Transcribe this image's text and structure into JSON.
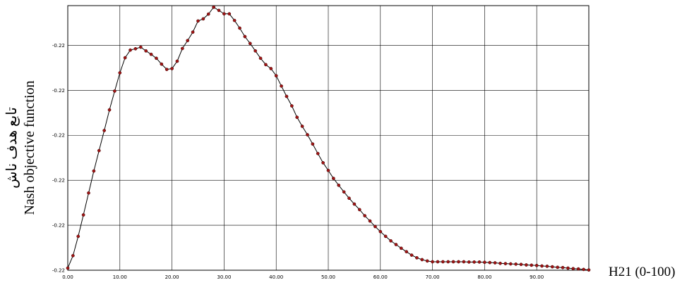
{
  "chart_data": {
    "type": "line",
    "xlabel": "H21 (0-100)",
    "ylabel_lines": [
      "تابع هدف ناش",
      "Nash objective function"
    ],
    "x_ticks": [
      "0.00",
      "10.00",
      "20.00",
      "30.00",
      "40.00",
      "50.00",
      "60.00",
      "70.00",
      "80.00",
      "90.00"
    ],
    "y_ticks": [
      "-0.22",
      "-0.22",
      "-0.22",
      "-0.22",
      "-0.22",
      "-0.22"
    ],
    "xlim": [
      0,
      100
    ],
    "ylim": [
      0.0,
      1.0
    ],
    "grid": true,
    "colors": {
      "line": "#000000",
      "marker": "#a01414",
      "grid": "#000000"
    },
    "series": [
      {
        "marker": "circle",
        "x": [
          0,
          1,
          2,
          3,
          4,
          5,
          6,
          7,
          8,
          9,
          10,
          11,
          12,
          13,
          14,
          15,
          16,
          17,
          18,
          19,
          20,
          21,
          22,
          23,
          24,
          25,
          26,
          27,
          28,
          29,
          30,
          31,
          32,
          33,
          34,
          35,
          36,
          37,
          38,
          39,
          40,
          41,
          42,
          43,
          44,
          45,
          46,
          47,
          48,
          49,
          50,
          51,
          52,
          53,
          54,
          55,
          56,
          57,
          58,
          59,
          60,
          61,
          62,
          63,
          64,
          65,
          66,
          67,
          68,
          69,
          70,
          71,
          72,
          73,
          74,
          75,
          76,
          77,
          78,
          79,
          80,
          81,
          82,
          83,
          84,
          85,
          86,
          87,
          88,
          89,
          90,
          91,
          92,
          93,
          94,
          95,
          96,
          97,
          98,
          99,
          100
        ],
        "y": [
          0.008,
          0.055,
          0.128,
          0.209,
          0.292,
          0.375,
          0.452,
          0.528,
          0.606,
          0.677,
          0.746,
          0.803,
          0.832,
          0.837,
          0.843,
          0.829,
          0.816,
          0.801,
          0.779,
          0.759,
          0.762,
          0.79,
          0.838,
          0.868,
          0.9,
          0.942,
          0.95,
          0.968,
          0.994,
          0.982,
          0.969,
          0.969,
          0.944,
          0.915,
          0.883,
          0.857,
          0.829,
          0.801,
          0.777,
          0.762,
          0.735,
          0.696,
          0.657,
          0.621,
          0.578,
          0.544,
          0.512,
          0.477,
          0.441,
          0.406,
          0.377,
          0.347,
          0.321,
          0.296,
          0.272,
          0.25,
          0.229,
          0.206,
          0.186,
          0.165,
          0.146,
          0.128,
          0.111,
          0.097,
          0.083,
          0.07,
          0.057,
          0.047,
          0.04,
          0.035,
          0.032,
          0.032,
          0.032,
          0.032,
          0.032,
          0.032,
          0.032,
          0.031,
          0.031,
          0.031,
          0.03,
          0.029,
          0.028,
          0.026,
          0.025,
          0.024,
          0.023,
          0.022,
          0.02,
          0.019,
          0.018,
          0.016,
          0.015,
          0.013,
          0.011,
          0.01,
          0.008,
          0.006,
          0.005,
          0.003,
          0.001
        ]
      }
    ]
  }
}
